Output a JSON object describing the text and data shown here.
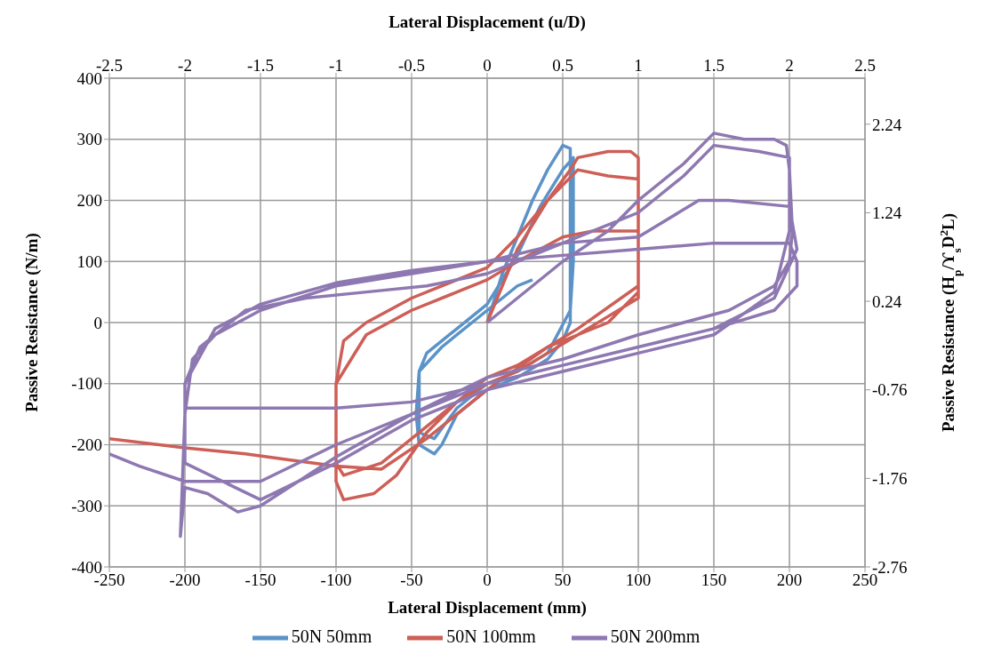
{
  "chart_data": {
    "type": "line",
    "xlabel": "Lateral Displacement (mm)",
    "ylabel": "Passive Resistance (N/m)",
    "x2label": "Lateral Displacement (u/D)",
    "y2label": "Passive Resistance (H$_{p}$/ϒ$_{s}$D$^{2}$L)",
    "xlim": [
      -250,
      250
    ],
    "xticks": [
      -250,
      -200,
      -150,
      -100,
      -50,
      0,
      50,
      100,
      150,
      200,
      250
    ],
    "ylim": [
      -400,
      400
    ],
    "yticks": [
      -400,
      -300,
      -200,
      -100,
      0,
      100,
      200,
      300,
      400
    ],
    "x2lim": [
      -2.5,
      2.5
    ],
    "x2ticks": [
      -2.5,
      -2,
      -1.5,
      -1,
      -0.5,
      0,
      0.5,
      1,
      1.5,
      2,
      2.5
    ],
    "y2lim": [
      -2.76,
      2.76
    ],
    "y2ticks": [
      -2.76,
      -1.76,
      -0.76,
      0.24,
      1.24,
      2.24
    ],
    "grid": true,
    "legend": "bottom",
    "marker": "none",
    "line_style": "solid",
    "series": [
      {
        "name": "50N 50mm",
        "color": "#5b93c8",
        "x": [
          0,
          10,
          20,
          30,
          40,
          50,
          55,
          55,
          55,
          55,
          50,
          40,
          20,
          0,
          -20,
          -30,
          -35,
          -45,
          -47,
          -45,
          -40,
          -20,
          0,
          20,
          35,
          50,
          57,
          57,
          55,
          40,
          20,
          0,
          -20,
          -35,
          -45,
          -45,
          -30,
          0,
          20,
          30
        ],
        "values": [
          0,
          80,
          140,
          200,
          250,
          290,
          285,
          200,
          100,
          0,
          -30,
          -60,
          -90,
          -110,
          -150,
          -200,
          -215,
          -200,
          -150,
          -80,
          -50,
          -10,
          30,
          110,
          190,
          250,
          270,
          100,
          20,
          -50,
          -80,
          -100,
          -140,
          -190,
          -180,
          -80,
          -40,
          20,
          60,
          70
        ]
      },
      {
        "name": "50N 100mm",
        "color": "#cd5f57",
        "x": [
          0,
          20,
          40,
          55,
          60,
          80,
          95,
          100,
          100,
          100,
          80,
          60,
          40,
          20,
          0,
          -20,
          -40,
          -60,
          -75,
          -95,
          -100,
          -100,
          -95,
          -80,
          -50,
          -20,
          0,
          20,
          40,
          60,
          80,
          100,
          100,
          60,
          20,
          0,
          -40,
          -70,
          -95,
          -100,
          -100,
          -80,
          -50,
          -20,
          0,
          20,
          50,
          70,
          100,
          100,
          80,
          40,
          0,
          -40,
          -70,
          -100,
          -130,
          -160,
          -200,
          -250
        ],
        "values": [
          0,
          120,
          200,
          250,
          270,
          280,
          280,
          270,
          100,
          40,
          10,
          -20,
          -50,
          -80,
          -100,
          -130,
          -180,
          -250,
          -280,
          -290,
          -260,
          -100,
          -30,
          0,
          40,
          70,
          90,
          140,
          200,
          250,
          240,
          235,
          60,
          -10,
          -70,
          -90,
          -170,
          -230,
          -250,
          -230,
          -100,
          -20,
          20,
          50,
          70,
          100,
          140,
          150,
          150,
          50,
          0,
          -40,
          -110,
          -190,
          -240,
          -235,
          -225,
          -215,
          -205,
          -190
        ]
      },
      {
        "name": "50N 200mm",
        "color": "#8e78b1",
        "x": [
          0,
          20,
          50,
          80,
          100,
          130,
          150,
          170,
          190,
          198,
          200,
          202,
          200,
          190,
          160,
          130,
          100,
          50,
          0,
          -50,
          -100,
          -150,
          -165,
          -185,
          -200,
          -203,
          -200,
          -195,
          -180,
          -150,
          -100,
          -50,
          0,
          50,
          100,
          150,
          200,
          205,
          205,
          190,
          150,
          100,
          50,
          0,
          -50,
          -100,
          -150,
          -200,
          -200,
          -190,
          -160,
          -120,
          -80,
          -40,
          0,
          50,
          100,
          130,
          150,
          180,
          200,
          200,
          190,
          150,
          100,
          50,
          0,
          -50,
          -100,
          -150,
          -200,
          -200,
          -180,
          -150,
          -100,
          -50,
          0,
          50,
          100,
          140,
          160,
          200,
          205,
          190,
          150,
          100,
          50,
          0,
          -50,
          -100,
          -150,
          -200,
          -230,
          -250
        ],
        "values": [
          0,
          40,
          100,
          150,
          200,
          260,
          310,
          300,
          300,
          290,
          250,
          150,
          100,
          60,
          20,
          0,
          -20,
          -60,
          -90,
          -150,
          -220,
          -300,
          -310,
          -280,
          -270,
          -350,
          -150,
          -60,
          -20,
          20,
          60,
          80,
          100,
          110,
          120,
          130,
          130,
          100,
          60,
          20,
          -10,
          -40,
          -70,
          -100,
          -130,
          -140,
          -140,
          -140,
          -100,
          -40,
          20,
          40,
          50,
          60,
          80,
          130,
          180,
          240,
          290,
          280,
          270,
          150,
          50,
          -20,
          -50,
          -80,
          -110,
          -160,
          -230,
          -290,
          -230,
          -100,
          -10,
          30,
          65,
          85,
          100,
          130,
          140,
          200,
          200,
          190,
          120,
          40,
          -10,
          -40,
          -70,
          -100,
          -150,
          -200,
          -260,
          -260,
          -235,
          -215
        ]
      }
    ]
  }
}
